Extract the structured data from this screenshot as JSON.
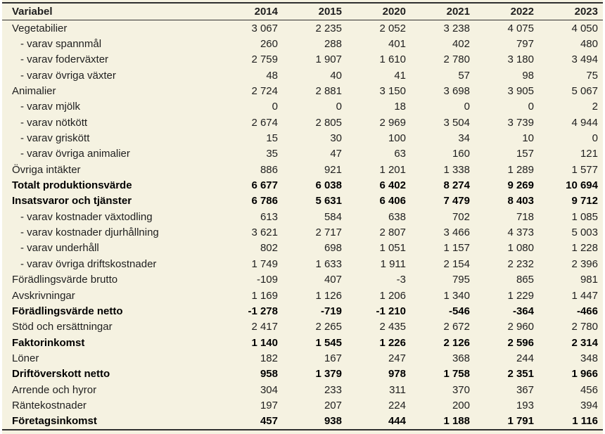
{
  "colors": {
    "sheet_background": "#f5f2e1",
    "page_margin": "#ffffff",
    "rule_color": "#2f2f2f",
    "text_color": "#1f1f1f",
    "bold_text_color": "#000000"
  },
  "table": {
    "header": {
      "variable_label": "Variabel",
      "years": [
        "2014",
        "2015",
        "2020",
        "2021",
        "2022",
        "2023"
      ]
    },
    "rows": [
      {
        "label": "Vegetabilier",
        "indent": false,
        "bold": false,
        "values": [
          "3 067",
          "2 235",
          "2 052",
          "3 238",
          "4 075",
          "4 050"
        ]
      },
      {
        "label": "- varav spannmål",
        "indent": true,
        "bold": false,
        "values": [
          "260",
          "288",
          "401",
          "402",
          "797",
          "480"
        ]
      },
      {
        "label": "- varav foderväxter",
        "indent": true,
        "bold": false,
        "values": [
          "2 759",
          "1 907",
          "1 610",
          "2 780",
          "3 180",
          "3 494"
        ]
      },
      {
        "label": "- varav övriga växter",
        "indent": true,
        "bold": false,
        "values": [
          "48",
          "40",
          "41",
          "57",
          "98",
          "75"
        ]
      },
      {
        "label": "Animalier",
        "indent": false,
        "bold": false,
        "values": [
          "2 724",
          "2 881",
          "3 150",
          "3 698",
          "3 905",
          "5 067"
        ]
      },
      {
        "label": "- varav mjölk",
        "indent": true,
        "bold": false,
        "values": [
          "0",
          "0",
          "18",
          "0",
          "0",
          "2"
        ]
      },
      {
        "label": "- varav nötkött",
        "indent": true,
        "bold": false,
        "values": [
          "2 674",
          "2 805",
          "2 969",
          "3 504",
          "3 739",
          "4 944"
        ]
      },
      {
        "label": "- varav griskött",
        "indent": true,
        "bold": false,
        "values": [
          "15",
          "30",
          "100",
          "34",
          "10",
          "0"
        ]
      },
      {
        "label": "- varav övriga animalier",
        "indent": true,
        "bold": false,
        "values": [
          "35",
          "47",
          "63",
          "160",
          "157",
          "121"
        ]
      },
      {
        "label": "Övriga intäkter",
        "indent": false,
        "bold": false,
        "values": [
          "886",
          "921",
          "1 201",
          "1 338",
          "1 289",
          "1 577"
        ]
      },
      {
        "label": "Totalt produktionsvärde",
        "indent": false,
        "bold": true,
        "values": [
          "6 677",
          "6 038",
          "6 402",
          "8 274",
          "9 269",
          "10 694"
        ]
      },
      {
        "label": "Insatsvaror och tjänster",
        "indent": false,
        "bold": true,
        "values": [
          "6 786",
          "5 631",
          "6 406",
          "7 479",
          "8 403",
          "9 712"
        ]
      },
      {
        "label": "- varav kostnader växtodling",
        "indent": true,
        "bold": false,
        "values": [
          "613",
          "584",
          "638",
          "702",
          "718",
          "1 085"
        ]
      },
      {
        "label": "- varav kostnader djurhållning",
        "indent": true,
        "bold": false,
        "values": [
          "3 621",
          "2 717",
          "2 807",
          "3 466",
          "4 373",
          "5 003"
        ]
      },
      {
        "label": "- varav underhåll",
        "indent": true,
        "bold": false,
        "values": [
          "802",
          "698",
          "1 051",
          "1 157",
          "1 080",
          "1 228"
        ]
      },
      {
        "label": "- varav övriga driftskostnader",
        "indent": true,
        "bold": false,
        "values": [
          "1 749",
          "1 633",
          "1 911",
          "2 154",
          "2 232",
          "2 396"
        ]
      },
      {
        "label": "Förädlingsvärde brutto",
        "indent": false,
        "bold": false,
        "values": [
          "-109",
          "407",
          "-3",
          "795",
          "865",
          "981"
        ]
      },
      {
        "label": "Avskrivningar",
        "indent": false,
        "bold": false,
        "values": [
          "1 169",
          "1 126",
          "1 206",
          "1 340",
          "1 229",
          "1 447"
        ]
      },
      {
        "label": "Förädlingsvärde netto",
        "indent": false,
        "bold": true,
        "values": [
          "-1 278",
          "-719",
          "-1 210",
          "-546",
          "-364",
          "-466"
        ]
      },
      {
        "label": "Stöd och ersättningar",
        "indent": false,
        "bold": false,
        "values": [
          "2 417",
          "2 265",
          "2 435",
          "2 672",
          "2 960",
          "2 780"
        ]
      },
      {
        "label": "Faktorinkomst",
        "indent": false,
        "bold": true,
        "values": [
          "1 140",
          "1 545",
          "1 226",
          "2 126",
          "2 596",
          "2 314"
        ]
      },
      {
        "label": "Löner",
        "indent": false,
        "bold": false,
        "values": [
          "182",
          "167",
          "247",
          "368",
          "244",
          "348"
        ]
      },
      {
        "label": "Driftöverskott netto",
        "indent": false,
        "bold": true,
        "values": [
          "958",
          "1 379",
          "978",
          "1 758",
          "2 351",
          "1 966"
        ]
      },
      {
        "label": "Arrende och hyror",
        "indent": false,
        "bold": false,
        "values": [
          "304",
          "233",
          "311",
          "370",
          "367",
          "456"
        ]
      },
      {
        "label": "Räntekostnader",
        "indent": false,
        "bold": false,
        "values": [
          "197",
          "207",
          "224",
          "200",
          "193",
          "394"
        ]
      },
      {
        "label": "Företagsinkomst",
        "indent": false,
        "bold": true,
        "values": [
          "457",
          "938",
          "444",
          "1 188",
          "1 791",
          "1 116"
        ]
      }
    ]
  }
}
